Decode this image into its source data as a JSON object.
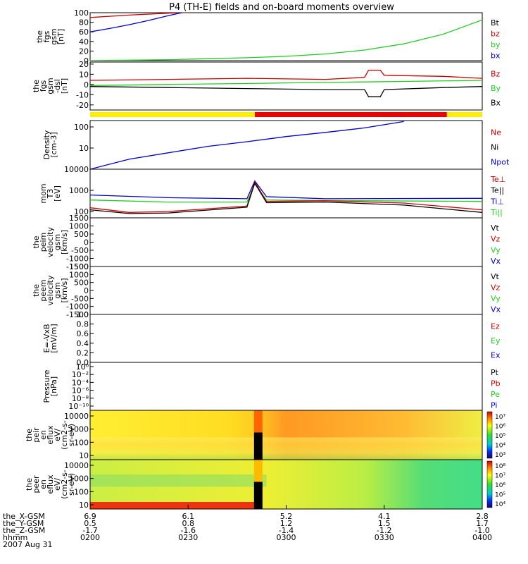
{
  "chart_data": {
    "type": "line",
    "title": "P4 (TH-E) fields and on-board moments overview",
    "date_label": "2007 Aug 31",
    "time_axis": {
      "ephemeris": [
        {
          "name": "the_X-GSM",
          "values": [
            "6.9",
            "6.1",
            "5.2",
            "4.1",
            "2.8"
          ]
        },
        {
          "name": "the_Y-GSM",
          "values": [
            "0.5",
            "0.8",
            "1.2",
            "1.5",
            "1.7"
          ]
        },
        {
          "name": "the_Z-GSM",
          "values": [
            "-1.7",
            "-1.6",
            "-1.4",
            "-1.2",
            "-1.0"
          ]
        },
        {
          "name": "hhmm",
          "values": [
            "0200",
            "0230",
            "0300",
            "0330",
            "0400"
          ]
        }
      ]
    },
    "panels": [
      {
        "id": "fgs_gsm",
        "ylabel": [
          "the",
          "fgs",
          "gsm",
          "[nT]"
        ],
        "ylim": [
          0,
          100
        ],
        "ticks": [
          "0",
          "20",
          "40",
          "60",
          "80",
          "100"
        ],
        "legend": [
          {
            "name": "Bt",
            "color": "#000000"
          },
          {
            "name": "bz",
            "color": "#cc0000"
          },
          {
            "name": "by",
            "color": "#22cc22"
          },
          {
            "name": "bx",
            "color": "#0000cc"
          }
        ],
        "series": [
          {
            "name": "bz",
            "color": "#cc0000",
            "x": [
              0,
              0.1,
              0.2,
              0.3,
              0.4
            ],
            "y": [
              90,
              95,
              99,
              102,
              105
            ]
          },
          {
            "name": "bx",
            "color": "#0000cc",
            "x": [
              0,
              0.05,
              0.1,
              0.15,
              0.2,
              0.25
            ],
            "y": [
              60,
              67,
              75,
              84,
              94,
              103
            ]
          },
          {
            "name": "by",
            "color": "#22cc22",
            "x": [
              0,
              0.1,
              0.2,
              0.3,
              0.4,
              0.5,
              0.6,
              0.7,
              0.8,
              0.9,
              1.0
            ],
            "y": [
              0,
              1,
              2,
              4,
              6,
              9,
              14,
              22,
              35,
              55,
              85
            ]
          }
        ]
      },
      {
        "id": "fgs_gse_dsl",
        "ylabel": [
          "the",
          "fgs",
          "gsm",
          "-dsl",
          "[nT]"
        ],
        "ylim": [
          -25,
          22
        ],
        "ticks": [
          "-20",
          "-10",
          "0",
          "10",
          "20"
        ],
        "legend": [
          {
            "name": "Bz",
            "color": "#cc0000"
          },
          {
            "name": "By",
            "color": "#22cc22"
          },
          {
            "name": "Bx",
            "color": "#000000"
          }
        ],
        "series": [
          {
            "name": "Bz",
            "color": "#cc0000",
            "x": [
              0,
              0.2,
              0.4,
              0.6,
              0.7,
              0.71,
              0.74,
              0.75,
              0.9,
              1.0
            ],
            "y": [
              4,
              5,
              6,
              5,
              7,
              14,
              14,
              9,
              8,
              6
            ]
          },
          {
            "name": "By",
            "color": "#22cc22",
            "x": [
              0,
              0.2,
              0.4,
              0.6,
              0.8,
              1.0
            ],
            "y": [
              -1,
              0,
              1,
              2,
              3,
              4
            ]
          },
          {
            "name": "Bx",
            "color": "#000000",
            "x": [
              0,
              0.2,
              0.4,
              0.6,
              0.7,
              0.71,
              0.74,
              0.75,
              0.9,
              1.0
            ],
            "y": [
              -2,
              -3,
              -4,
              -5,
              -5,
              -12,
              -12,
              -5,
              -3,
              -2
            ]
          }
        ]
      },
      {
        "id": "density",
        "ylabel": [
          "Density",
          "[cm-3]"
        ],
        "scale": "log",
        "ylim": [
          1,
          200
        ],
        "ticks": [
          "10",
          "100"
        ],
        "legend": [
          {
            "name": "Ne",
            "color": "#cc0000"
          },
          {
            "name": "Ni",
            "color": "#000000"
          },
          {
            "name": "Npot",
            "color": "#0000cc"
          }
        ],
        "series": [
          {
            "name": "Npot",
            "color": "#0000cc",
            "x": [
              0,
              0.1,
              0.2,
              0.3,
              0.4,
              0.5,
              0.6,
              0.7,
              0.8
            ],
            "y": [
              1,
              3,
              6,
              12,
              20,
              35,
              55,
              90,
              180
            ]
          }
        ]
      },
      {
        "id": "temperature",
        "ylabel": [
          "mom",
          "T3",
          "[eV]"
        ],
        "scale": "log",
        "ylim": [
          50,
          10000
        ],
        "ticks": [
          "100",
          "1000",
          "10000"
        ],
        "legend": [
          {
            "name": "Te⊥",
            "color": "#cc0000"
          },
          {
            "name": "Te||",
            "color": "#000000"
          },
          {
            "name": "Ti⊥",
            "color": "#0000cc"
          },
          {
            "name": "Ti||",
            "color": "#22cc22"
          }
        ],
        "series": [
          {
            "name": "Ti⊥",
            "color": "#0000cc",
            "x": [
              0,
              0.2,
              0.4,
              0.42,
              0.45,
              0.6,
              1.0
            ],
            "y": [
              600,
              450,
              400,
              2800,
              500,
              400,
              420
            ]
          },
          {
            "name": "Ti||",
            "color": "#22cc22",
            "x": [
              0,
              0.2,
              0.4,
              0.42,
              0.45,
              0.6,
              1.0
            ],
            "y": [
              350,
              280,
              280,
              2000,
              350,
              330,
              300
            ]
          },
          {
            "name": "Te⊥",
            "color": "#cc0000",
            "x": [
              0,
              0.1,
              0.2,
              0.4,
              0.42,
              0.45,
              0.6,
              0.8,
              1.0
            ],
            "y": [
              150,
              90,
              100,
              180,
              2500,
              300,
              320,
              250,
              120
            ]
          },
          {
            "name": "Te||",
            "color": "#000000",
            "x": [
              0,
              0.1,
              0.2,
              0.4,
              0.42,
              0.45,
              0.6,
              0.8,
              1.0
            ],
            "y": [
              120,
              80,
              85,
              160,
              2200,
              260,
              280,
              200,
              90
            ]
          }
        ]
      },
      {
        "id": "peim_velocity",
        "ylabel": [
          "the",
          "peim",
          "velocity",
          "gsm",
          "[km/s]"
        ],
        "ylim": [
          -1500,
          1500
        ],
        "ticks": [
          "-1500",
          "-1000",
          "-500",
          "0",
          "500",
          "1000",
          "1500"
        ],
        "legend": [
          {
            "name": "Vt",
            "color": "#000000"
          },
          {
            "name": "Vz",
            "color": "#cc0000"
          },
          {
            "name": "Vy",
            "color": "#22cc22"
          },
          {
            "name": "Vx",
            "color": "#0000cc"
          }
        ],
        "series": []
      },
      {
        "id": "peem_velocity",
        "ylabel": [
          "the",
          "peem",
          "velocity",
          "gsm",
          "[km/s]"
        ],
        "ylim": [
          -1500,
          1500
        ],
        "ticks": [
          "-1500",
          "-1000",
          "-500",
          "0",
          "500",
          "1000",
          "1500"
        ],
        "legend": [
          {
            "name": "Vt",
            "color": "#000000"
          },
          {
            "name": "Vz",
            "color": "#cc0000"
          },
          {
            "name": "Vy",
            "color": "#22cc22"
          },
          {
            "name": "Vx",
            "color": "#0000cc"
          }
        ],
        "series": []
      },
      {
        "id": "efield",
        "ylabel": [
          "E=-VxB",
          "[mV/m]"
        ],
        "ylim": [
          0,
          1
        ],
        "ticks": [
          "0.0",
          "0.2",
          "0.4",
          "0.6",
          "0.8",
          "1.0"
        ],
        "legend": [
          {
            "name": "Ez",
            "color": "#cc0000"
          },
          {
            "name": "Ey",
            "color": "#22cc22"
          },
          {
            "name": "Ex",
            "color": "#0000cc"
          }
        ],
        "series": []
      },
      {
        "id": "pressure",
        "ylabel": [
          "Pressure",
          "[nPa]"
        ],
        "scale": "log",
        "ticks": [
          "10⁻¹⁰",
          "10⁻⁸",
          "10⁻⁶",
          "10⁻⁴",
          "10⁻²",
          "10⁰"
        ],
        "legend": [
          {
            "name": "Pt",
            "color": "#000000"
          },
          {
            "name": "Pb",
            "color": "#cc0000"
          },
          {
            "name": "Pe",
            "color": "#22cc22"
          },
          {
            "name": "Pi",
            "color": "#0000cc"
          }
        ],
        "series": []
      },
      {
        "id": "peir_spec",
        "type": "heatmap",
        "ylabel": [
          "the",
          "peir",
          "en",
          "eflux",
          "eV/",
          "(cm2-s-",
          "sr-eV)"
        ],
        "ticks": [
          "10",
          "100",
          "1000",
          "10000"
        ],
        "colorbar_ticks": [
          "10³",
          "10⁴",
          "10⁵",
          "10⁶",
          "10⁷"
        ]
      },
      {
        "id": "peer_spec",
        "type": "heatmap",
        "ylabel": [
          "the",
          "peer",
          "en",
          "eflux",
          "eV/",
          "(cm2-s-",
          "sr-eV)"
        ],
        "ticks": [
          "10",
          "100",
          "1000",
          "10000"
        ],
        "colorbar_ticks": [
          "10⁴",
          "10⁵",
          "10⁶",
          "10⁷",
          "10⁸"
        ]
      }
    ],
    "mode_bar": [
      {
        "from": 0,
        "to": 0.42,
        "color": "#ffee00"
      },
      {
        "from": 0.42,
        "to": 0.91,
        "color": "#ee0000"
      },
      {
        "from": 0.91,
        "to": 1.0,
        "color": "#ffee00"
      }
    ]
  }
}
